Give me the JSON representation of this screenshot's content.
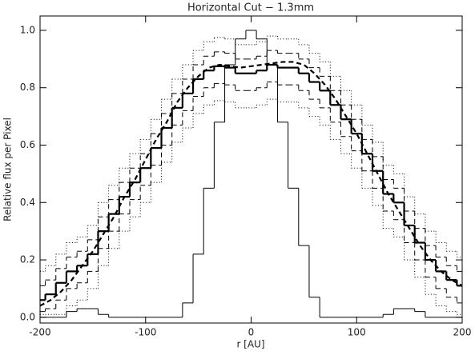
{
  "chart_data": {
    "type": "step-line",
    "title": "Horizontal Cut − 1.3mm",
    "x_label": "r  [AU]",
    "y_label": "Relative flux per Pixel",
    "xlim": [
      -200,
      200
    ],
    "ylim": [
      -0.02,
      1.05
    ],
    "xticks": [
      -200,
      -100,
      0,
      100,
      200
    ],
    "yticks": [
      {
        "value": 0,
        "label": "0.0"
      },
      {
        "value": 0.2,
        "label": "0.2"
      },
      {
        "value": 0.4,
        "label": "0.4"
      },
      {
        "value": 0.6,
        "label": "0.6"
      },
      {
        "value": 0.8,
        "label": "0.8"
      },
      {
        "value": 1,
        "label": "1.0"
      }
    ],
    "x": [
      -200,
      -190,
      -180,
      -170,
      -160,
      -150,
      -140,
      -130,
      -120,
      -110,
      -100,
      -90,
      -80,
      -70,
      -60,
      -50,
      -40,
      -30,
      -20,
      -10,
      0,
      10,
      20,
      30,
      40,
      50,
      60,
      70,
      80,
      90,
      100,
      110,
      120,
      130,
      140,
      150,
      160,
      170,
      180,
      190,
      200
    ],
    "series": [
      {
        "color": "#000000",
        "line_style": "dotted",
        "line_width": 1,
        "step": true,
        "values": [
          0.16,
          0.18,
          0.22,
          0.26,
          0.28,
          0.32,
          0.4,
          0.46,
          0.52,
          0.57,
          0.62,
          0.69,
          0.76,
          0.83,
          0.88,
          0.93,
          0.96,
          0.975,
          0.97,
          0.95,
          0.95,
          0.96,
          0.98,
          0.97,
          0.97,
          0.95,
          0.92,
          0.89,
          0.84,
          0.79,
          0.74,
          0.67,
          0.61,
          0.53,
          0.5,
          0.42,
          0.36,
          0.3,
          0.26,
          0.23,
          0.21
        ]
      },
      {
        "color": "#000000",
        "line_style": "dotted",
        "line_width": 1,
        "step": true,
        "values": [
          0.01,
          0.01,
          0.01,
          0.04,
          0.06,
          0.1,
          0.18,
          0.24,
          0.3,
          0.35,
          0.4,
          0.47,
          0.54,
          0.61,
          0.66,
          0.71,
          0.74,
          0.755,
          0.75,
          0.73,
          0.73,
          0.74,
          0.76,
          0.75,
          0.75,
          0.73,
          0.7,
          0.67,
          0.62,
          0.57,
          0.52,
          0.45,
          0.39,
          0.31,
          0.28,
          0.2,
          0.14,
          0.08,
          0.04,
          0.02,
          0.01
        ]
      },
      {
        "color": "#000000",
        "line_style": "dashed",
        "line_width": 1,
        "step": true,
        "values": [
          0.11,
          0.13,
          0.17,
          0.21,
          0.23,
          0.27,
          0.35,
          0.41,
          0.47,
          0.52,
          0.57,
          0.64,
          0.71,
          0.78,
          0.83,
          0.88,
          0.91,
          0.925,
          0.92,
          0.9,
          0.9,
          0.91,
          0.93,
          0.92,
          0.92,
          0.9,
          0.87,
          0.84,
          0.79,
          0.74,
          0.69,
          0.62,
          0.56,
          0.48,
          0.45,
          0.37,
          0.31,
          0.25,
          0.21,
          0.18,
          0.16
        ]
      },
      {
        "color": "#000000",
        "line_style": "dashed",
        "line_width": 1,
        "step": true,
        "values": [
          0.02,
          0.03,
          0.06,
          0.1,
          0.12,
          0.16,
          0.24,
          0.3,
          0.36,
          0.41,
          0.46,
          0.53,
          0.6,
          0.67,
          0.72,
          0.77,
          0.8,
          0.815,
          0.81,
          0.79,
          0.79,
          0.8,
          0.82,
          0.81,
          0.81,
          0.79,
          0.76,
          0.73,
          0.68,
          0.63,
          0.58,
          0.51,
          0.45,
          0.37,
          0.34,
          0.26,
          0.2,
          0.14,
          0.1,
          0.07,
          0.05
        ]
      },
      {
        "color": "#000000",
        "line_style": "solid",
        "line_width": 1,
        "step": true,
        "values": [
          0,
          0,
          0,
          0.02,
          0.03,
          0.03,
          0.01,
          0,
          0,
          0,
          0,
          0,
          0,
          0,
          0.05,
          0.22,
          0.45,
          0.68,
          0.88,
          0.97,
          1.0,
          0.97,
          0.88,
          0.68,
          0.45,
          0.25,
          0.07,
          0,
          0,
          0,
          0,
          0,
          0,
          0.01,
          0.03,
          0.03,
          0.02,
          0,
          0,
          0,
          0
        ]
      },
      {
        "color": "#000000",
        "line_style": "solid",
        "line_width": 2.2,
        "step": true,
        "values": [
          0.06,
          0.08,
          0.12,
          0.16,
          0.18,
          0.22,
          0.3,
          0.36,
          0.42,
          0.47,
          0.52,
          0.59,
          0.66,
          0.73,
          0.78,
          0.83,
          0.86,
          0.875,
          0.87,
          0.85,
          0.85,
          0.86,
          0.88,
          0.87,
          0.87,
          0.85,
          0.82,
          0.79,
          0.74,
          0.69,
          0.64,
          0.57,
          0.51,
          0.43,
          0.4,
          0.32,
          0.26,
          0.2,
          0.16,
          0.13,
          0.11
        ]
      },
      {
        "color": "#000000",
        "line_style": "dashed",
        "line_width": 2.2,
        "step": false,
        "values": [
          0.04,
          0.06,
          0.09,
          0.13,
          0.18,
          0.23,
          0.29,
          0.35,
          0.42,
          0.48,
          0.55,
          0.62,
          0.68,
          0.75,
          0.8,
          0.84,
          0.87,
          0.88,
          0.875,
          0.87,
          0.875,
          0.88,
          0.885,
          0.89,
          0.89,
          0.88,
          0.85,
          0.81,
          0.76,
          0.7,
          0.64,
          0.57,
          0.5,
          0.43,
          0.37,
          0.31,
          0.25,
          0.2,
          0.16,
          0.13,
          0.11
        ]
      }
    ]
  }
}
